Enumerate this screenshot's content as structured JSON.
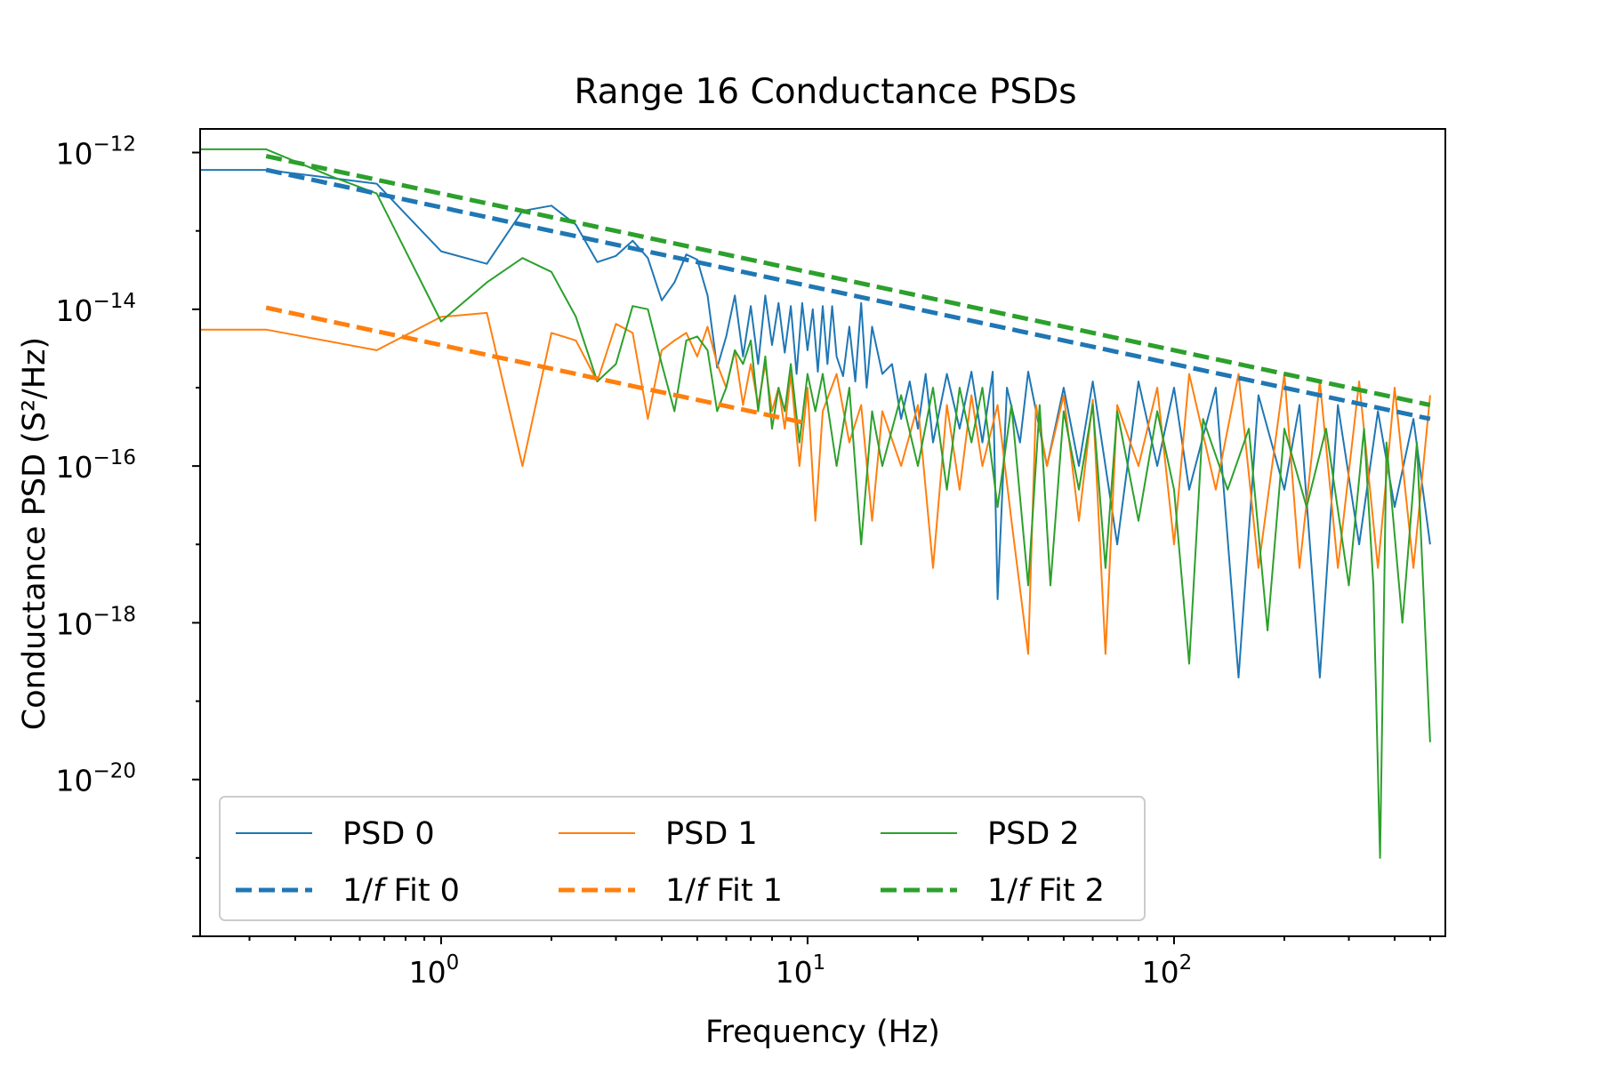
{
  "chart_data": {
    "type": "line",
    "title": "Range 16 Conductance PSDs",
    "xlabel": "Frequency (Hz)",
    "ylabel": "Conductance PSD (S²/Hz)",
    "xscale": "log",
    "yscale": "log",
    "xlim": [
      0.22,
      550
    ],
    "ylim": [
      1e-22,
      2e-12
    ],
    "x_ticks": [
      {
        "value": 1,
        "label": "10",
        "exp": "0"
      },
      {
        "value": 10,
        "label": "10",
        "exp": "1"
      },
      {
        "value": 100,
        "label": "10",
        "exp": "2"
      }
    ],
    "y_ticks": [
      {
        "value": 1e-12,
        "label": "10",
        "exp": "−12"
      },
      {
        "value": 1e-14,
        "label": "10",
        "exp": "−14"
      },
      {
        "value": 1e-16,
        "label": "10",
        "exp": "−16"
      },
      {
        "value": 1e-18,
        "label": "10",
        "exp": "−18"
      },
      {
        "value": 1e-20,
        "label": "10",
        "exp": "−20"
      }
    ],
    "grid": false,
    "legend_position": "lower-left",
    "series": [
      {
        "name": "PSD 0",
        "style": "solid",
        "color": "#1f77b4",
        "points": [
          [
            0.22,
            6e-13
          ],
          [
            0.333,
            6e-13
          ],
          [
            0.667,
            4e-13
          ],
          [
            1.0,
            5.5e-14
          ],
          [
            1.333,
            3.8e-14
          ],
          [
            1.667,
            1.8e-13
          ],
          [
            2.0,
            2.1e-13
          ],
          [
            2.333,
            1.2e-13
          ],
          [
            2.667,
            4e-14
          ],
          [
            3.0,
            4.8e-14
          ],
          [
            3.333,
            7.5e-14
          ],
          [
            3.667,
            4.5e-14
          ],
          [
            4.0,
            1.3e-14
          ],
          [
            4.333,
            2.2e-14
          ],
          [
            4.667,
            5e-14
          ],
          [
            5.0,
            4.3e-14
          ],
          [
            5.333,
            1.5e-14
          ],
          [
            5.667,
            1.8e-15
          ],
          [
            6.0,
            4.5e-15
          ],
          [
            6.333,
            1.5e-14
          ],
          [
            6.667,
            2.5e-15
          ],
          [
            7.0,
            1.1e-14
          ],
          [
            7.333,
            2e-15
          ],
          [
            7.667,
            1.5e-14
          ],
          [
            8.0,
            3.5e-15
          ],
          [
            8.333,
            1.2e-14
          ],
          [
            8.667,
            2.8e-15
          ],
          [
            9.0,
            1.1e-14
          ],
          [
            9.333,
            1.5e-15
          ],
          [
            9.667,
            1.2e-14
          ],
          [
            10.0,
            3e-15
          ],
          [
            10.33,
            1e-14
          ],
          [
            10.67,
            1.6e-15
          ],
          [
            11.0,
            1.1e-14
          ],
          [
            11.33,
            2e-15
          ],
          [
            11.67,
            1.1e-14
          ],
          [
            12.0,
            2.5e-15
          ],
          [
            12.5,
            1.4e-15
          ],
          [
            13.0,
            6e-15
          ],
          [
            13.5,
            1.2e-15
          ],
          [
            14.0,
            1.2e-14
          ],
          [
            14.5,
            1e-15
          ],
          [
            15.0,
            6e-15
          ],
          [
            16.0,
            1.5e-15
          ],
          [
            17.0,
            2e-15
          ],
          [
            18.0,
            4e-16
          ],
          [
            19.0,
            1.2e-15
          ],
          [
            20.0,
            3e-16
          ],
          [
            21.0,
            1.5e-15
          ],
          [
            22.0,
            2e-16
          ],
          [
            24.0,
            1.5e-15
          ],
          [
            26.0,
            3e-16
          ],
          [
            28.0,
            1.6e-15
          ],
          [
            30.0,
            2e-16
          ],
          [
            32.0,
            1.6e-15
          ],
          [
            33.0,
            2e-18
          ],
          [
            35.0,
            1e-15
          ],
          [
            38.0,
            2e-16
          ],
          [
            40.0,
            1.6e-15
          ],
          [
            45.0,
            1e-16
          ],
          [
            50.0,
            1e-15
          ],
          [
            55.0,
            1e-16
          ],
          [
            60.0,
            1.2e-15
          ],
          [
            70.0,
            1e-17
          ],
          [
            80.0,
            1.2e-15
          ],
          [
            90.0,
            1e-16
          ],
          [
            100.0,
            1e-15
          ],
          [
            110.0,
            5e-17
          ],
          [
            130.0,
            1e-15
          ],
          [
            150.0,
            2e-19
          ],
          [
            170.0,
            8e-16
          ],
          [
            200.0,
            5e-17
          ],
          [
            220.0,
            6e-16
          ],
          [
            250.0,
            2e-19
          ],
          [
            280.0,
            6e-16
          ],
          [
            320.0,
            1e-17
          ],
          [
            360.0,
            5e-16
          ],
          [
            400.0,
            3e-17
          ],
          [
            450.0,
            4e-16
          ],
          [
            500.0,
            1e-17
          ]
        ]
      },
      {
        "name": "PSD 1",
        "style": "solid",
        "color": "#ff7f0e",
        "points": [
          [
            0.22,
            5.5e-15
          ],
          [
            0.333,
            5.5e-15
          ],
          [
            0.667,
            3e-15
          ],
          [
            1.0,
            8e-15
          ],
          [
            1.333,
            9e-15
          ],
          [
            1.667,
            1e-16
          ],
          [
            2.0,
            5e-15
          ],
          [
            2.333,
            4e-15
          ],
          [
            2.667,
            1.2e-15
          ],
          [
            3.0,
            6.5e-15
          ],
          [
            3.333,
            5e-15
          ],
          [
            3.667,
            4e-16
          ],
          [
            4.0,
            3e-15
          ],
          [
            4.333,
            4e-15
          ],
          [
            4.667,
            5e-15
          ],
          [
            5.0,
            2.5e-15
          ],
          [
            5.333,
            6e-15
          ],
          [
            5.667,
            2e-15
          ],
          [
            6.0,
            1e-15
          ],
          [
            6.333,
            3e-15
          ],
          [
            6.667,
            6e-16
          ],
          [
            7.0,
            2e-15
          ],
          [
            7.333,
            6e-16
          ],
          [
            7.667,
            2e-15
          ],
          [
            8.0,
            5e-16
          ],
          [
            8.333,
            1e-15
          ],
          [
            8.667,
            3e-16
          ],
          [
            9.0,
            1.5e-15
          ],
          [
            9.5,
            1e-16
          ],
          [
            10.0,
            1e-15
          ],
          [
            10.5,
            2e-17
          ],
          [
            11.0,
            5e-16
          ],
          [
            12.0,
            1.5e-15
          ],
          [
            13.0,
            2e-16
          ],
          [
            14.0,
            6e-16
          ],
          [
            15.0,
            2e-17
          ],
          [
            16.0,
            5e-16
          ],
          [
            18.0,
            1e-16
          ],
          [
            20.0,
            6e-16
          ],
          [
            22.0,
            5e-18
          ],
          [
            24.0,
            6e-16
          ],
          [
            26.0,
            5e-17
          ],
          [
            28.0,
            8e-16
          ],
          [
            30.0,
            1e-16
          ],
          [
            33.0,
            6e-16
          ],
          [
            36.0,
            2e-17
          ],
          [
            40.0,
            4e-19
          ],
          [
            42.0,
            6e-16
          ],
          [
            45.0,
            1e-16
          ],
          [
            50.0,
            8e-16
          ],
          [
            55.0,
            2e-17
          ],
          [
            60.0,
            7e-16
          ],
          [
            65.0,
            4e-19
          ],
          [
            70.0,
            6e-16
          ],
          [
            80.0,
            1e-16
          ],
          [
            90.0,
            1e-15
          ],
          [
            100.0,
            1e-17
          ],
          [
            110.0,
            1.5e-15
          ],
          [
            130.0,
            5e-17
          ],
          [
            150.0,
            1.5e-15
          ],
          [
            170.0,
            5e-18
          ],
          [
            200.0,
            1.5e-15
          ],
          [
            220.0,
            5e-18
          ],
          [
            250.0,
            1.2e-15
          ],
          [
            280.0,
            5e-18
          ],
          [
            320.0,
            1.2e-15
          ],
          [
            360.0,
            5e-18
          ],
          [
            400.0,
            1e-15
          ],
          [
            450.0,
            5e-18
          ],
          [
            500.0,
            8e-16
          ]
        ]
      },
      {
        "name": "PSD 2",
        "style": "solid",
        "color": "#2ca02c",
        "points": [
          [
            0.22,
            1.1e-12
          ],
          [
            0.333,
            1.1e-12
          ],
          [
            0.5,
            5e-13
          ],
          [
            0.667,
            3e-13
          ],
          [
            1.0,
            7e-15
          ],
          [
            1.333,
            2.2e-14
          ],
          [
            1.667,
            4.5e-14
          ],
          [
            2.0,
            3e-14
          ],
          [
            2.333,
            8e-15
          ],
          [
            2.667,
            1.2e-15
          ],
          [
            3.0,
            2e-15
          ],
          [
            3.333,
            1.1e-14
          ],
          [
            3.667,
            1e-14
          ],
          [
            4.0,
            2e-15
          ],
          [
            4.333,
            5e-16
          ],
          [
            4.667,
            4e-15
          ],
          [
            5.0,
            4.5e-15
          ],
          [
            5.333,
            3e-15
          ],
          [
            5.667,
            5e-16
          ],
          [
            6.0,
            1e-15
          ],
          [
            6.333,
            3e-15
          ],
          [
            6.667,
            2e-15
          ],
          [
            7.0,
            4e-15
          ],
          [
            7.333,
            5e-16
          ],
          [
            7.667,
            2.5e-15
          ],
          [
            8.0,
            3e-16
          ],
          [
            8.333,
            1e-15
          ],
          [
            8.667,
            5e-16
          ],
          [
            9.0,
            2e-15
          ],
          [
            9.5,
            2e-16
          ],
          [
            10.0,
            1.5e-15
          ],
          [
            10.5,
            5e-16
          ],
          [
            11.0,
            1.5e-15
          ],
          [
            12.0,
            1e-16
          ],
          [
            13.0,
            1e-15
          ],
          [
            14.0,
            1e-17
          ],
          [
            15.0,
            5e-16
          ],
          [
            16.0,
            1e-16
          ],
          [
            18.0,
            8e-16
          ],
          [
            20.0,
            1e-16
          ],
          [
            22.0,
            1e-15
          ],
          [
            24.0,
            5e-17
          ],
          [
            26.0,
            1e-15
          ],
          [
            28.0,
            2e-16
          ],
          [
            30.0,
            1e-15
          ],
          [
            33.0,
            3e-17
          ],
          [
            36.0,
            6e-16
          ],
          [
            40.0,
            3e-18
          ],
          [
            43.0,
            6e-16
          ],
          [
            46.0,
            3e-18
          ],
          [
            50.0,
            5e-16
          ],
          [
            55.0,
            5e-17
          ],
          [
            60.0,
            6e-16
          ],
          [
            65.0,
            5e-18
          ],
          [
            70.0,
            5e-16
          ],
          [
            80.0,
            2e-17
          ],
          [
            90.0,
            5e-16
          ],
          [
            100.0,
            5e-17
          ],
          [
            110.0,
            3e-19
          ],
          [
            120.0,
            4e-16
          ],
          [
            140.0,
            5e-17
          ],
          [
            160.0,
            3e-16
          ],
          [
            180.0,
            8e-19
          ],
          [
            200.0,
            3e-16
          ],
          [
            230.0,
            3e-17
          ],
          [
            260.0,
            3e-16
          ],
          [
            300.0,
            3e-18
          ],
          [
            330.0,
            3e-16
          ],
          [
            350.0,
            3e-18
          ],
          [
            365.0,
            1e-21
          ],
          [
            380.0,
            2e-16
          ],
          [
            420.0,
            1e-18
          ],
          [
            460.0,
            2e-16
          ],
          [
            500.0,
            3e-20
          ]
        ]
      },
      {
        "name": "1/f Fit 0",
        "style": "dashed",
        "color": "#1f77b4",
        "points": [
          [
            0.333,
            6e-13
          ],
          [
            500,
            4e-16
          ]
        ]
      },
      {
        "name": "1/f Fit 1",
        "style": "dashed",
        "color": "#ff7f0e",
        "points": [
          [
            0.333,
            1.05e-14
          ],
          [
            10,
            3.5e-16
          ]
        ]
      },
      {
        "name": "1/f Fit 2",
        "style": "dashed",
        "color": "#2ca02c",
        "points": [
          [
            0.333,
            9e-13
          ],
          [
            500,
            6e-16
          ]
        ]
      }
    ],
    "legend": [
      {
        "label_prefix": "PSD 0",
        "label_italic": "",
        "label_suffix": "",
        "series": 0
      },
      {
        "label_prefix": "PSD 1",
        "label_italic": "",
        "label_suffix": "",
        "series": 1
      },
      {
        "label_prefix": "PSD 2",
        "label_italic": "",
        "label_suffix": "",
        "series": 2
      },
      {
        "label_prefix": "1/",
        "label_italic": "f",
        "label_suffix": " Fit 0",
        "series": 3
      },
      {
        "label_prefix": "1/",
        "label_italic": "f",
        "label_suffix": " Fit 1",
        "series": 4
      },
      {
        "label_prefix": "1/",
        "label_italic": "f",
        "label_suffix": " Fit 2",
        "series": 5
      }
    ]
  }
}
